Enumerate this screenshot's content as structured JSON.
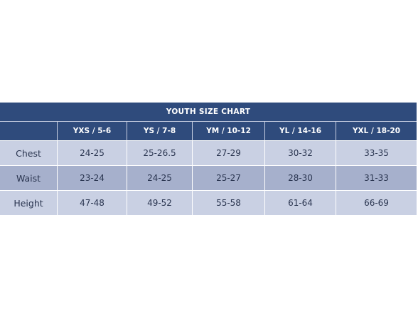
{
  "chart_data": {
    "type": "table",
    "title": "YOUTH SIZE CHART",
    "columns": [
      "",
      "YXS / 5-6",
      "YS / 7-8",
      "YM / 10-12",
      "YL / 14-16",
      "YXL / 18-20"
    ],
    "rows": [
      {
        "label": "Chest",
        "values": [
          "24-25",
          "25-26.5",
          "27-29",
          "30-32",
          "33-35"
        ]
      },
      {
        "label": "Waist",
        "values": [
          "23-24",
          "24-25",
          "25-27",
          "28-30",
          "31-33"
        ]
      },
      {
        "label": "Height",
        "values": [
          "47-48",
          "49-52",
          "55-58",
          "61-64",
          "66-69"
        ]
      }
    ]
  },
  "colors": {
    "header_bg": "#2f4b7c",
    "row_light": "#c9d0e3",
    "row_dark": "#a6b0cc",
    "text_dark": "#2a3550"
  }
}
